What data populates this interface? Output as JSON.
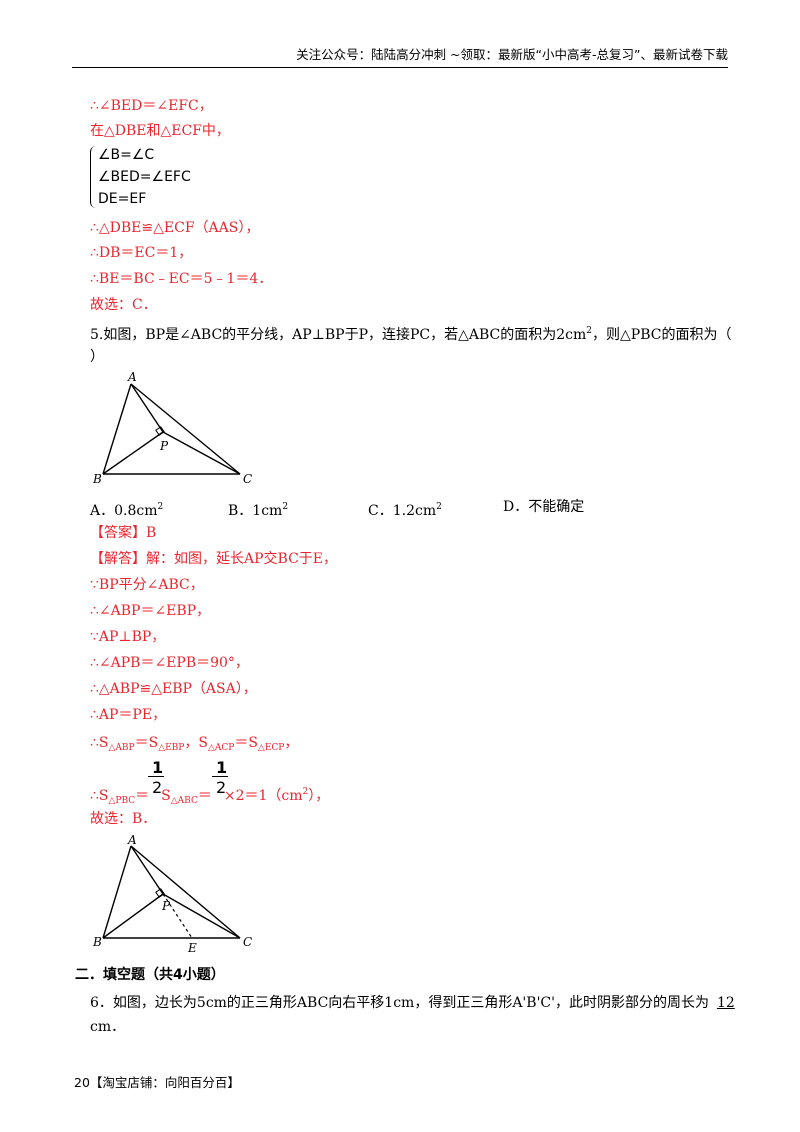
{
  "header": {
    "text": "关注公众号：陆陆高分冲刺 ~领取：最新版“小中高考-总复习”、最新试卷下载"
  },
  "solution4": {
    "line1": "∴∠BED＝∠EFC，",
    "line2": "在△DBE和△ECF中，",
    "system": [
      "∠B=∠C",
      "∠BED=∠EFC",
      "DE=EF"
    ],
    "line3": "∴△DBE≌△ECF（AAS），",
    "line4": "∴DB＝EC＝1，",
    "line5": "∴BE＝BC﹣EC＝5﹣1＝4．",
    "line6": "故选：C．"
  },
  "question5": {
    "stem_a": "5.如图，BP是∠ABC的平分线，AP⊥BP于P，连接PC，若△ABC的面积为2cm",
    "stem_sup": "2",
    "stem_b": "，则△PBC的面积为（",
    "stem_c": "）",
    "choices": [
      {
        "label": "A．0.8cm",
        "sup": "2"
      },
      {
        "label": "B．1cm",
        "sup": "2"
      },
      {
        "label": "C．1.2cm",
        "sup": "2"
      },
      {
        "label": "D．不能确定",
        "sup": ""
      }
    ],
    "answer": "【答案】B",
    "steps": [
      "【解答】解：如图，延长AP交BC于E，",
      "∵BP平分∠ABC，",
      "∴∠ABP＝∠EBP，",
      "∵AP⊥BP，",
      "∴∠APB＝∠EPB＝90°，",
      "∴△ABP≌△EBP（ASA），",
      "∴AP＝PE，"
    ],
    "area_line": {
      "prefix": "∴S",
      "s1": "△ABP",
      "mid1": "＝S",
      "s2": "△EBP",
      "mid2": "，S",
      "s3": "△ACP",
      "mid3": "＝S",
      "s4": "△ECP",
      "end": "，"
    },
    "result_line": {
      "prefix": "∴S",
      "s1": "△PBC",
      "eq1": "＝",
      "frac_num": "1",
      "frac_den": "2",
      "s_mid": "S",
      "s2": "△ABC",
      "eq2": "＝",
      "frac2_num": "1",
      "frac2_den": "2",
      "tail": "×2＝1（cm",
      "tail_sup": "2",
      "tail_end": "），"
    },
    "choose": "故选：B．",
    "figure1_labels": {
      "A": "A",
      "B": "B",
      "C": "C",
      "P": "P"
    },
    "figure2_labels": {
      "A": "A",
      "B": "B",
      "C": "C",
      "P": "P",
      "E": "E"
    }
  },
  "section2": {
    "title": "二．填空题（共4小题）"
  },
  "question6": {
    "text_a": "6．如图，边长为5cm的正三角形ABC向右平移1cm，得到正三角形A'B'C'，此时阴影部分的周长为",
    "answer": "12",
    "text_b": "cm．"
  },
  "footer": {
    "page_num": "20",
    "text": "【淘宝店铺：向阳百分百】"
  }
}
